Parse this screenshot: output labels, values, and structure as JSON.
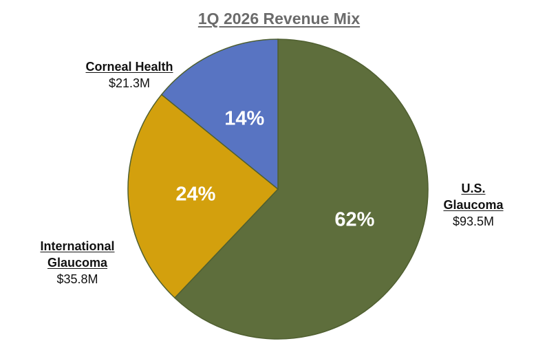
{
  "chart_data": {
    "type": "pie",
    "title": "1Q 2026 Revenue Mix",
    "slices": [
      {
        "name_lines": [
          "U.S.",
          "Glaucoma"
        ],
        "amount": "$93.5M",
        "value": 93.5,
        "percent_label": "62%",
        "color": "#5e6e3c"
      },
      {
        "name_lines": [
          "International",
          "Glaucoma"
        ],
        "amount": "$35.8M",
        "value": 35.8,
        "percent_label": "24%",
        "color": "#d3a00d"
      },
      {
        "name_lines": [
          "Corneal Health"
        ],
        "amount": "$21.3M",
        "value": 21.3,
        "percent_label": "14%",
        "color": "#5874c2"
      }
    ],
    "start_position": "12 o'clock, clockwise",
    "edge_color": "#4f5f30"
  }
}
